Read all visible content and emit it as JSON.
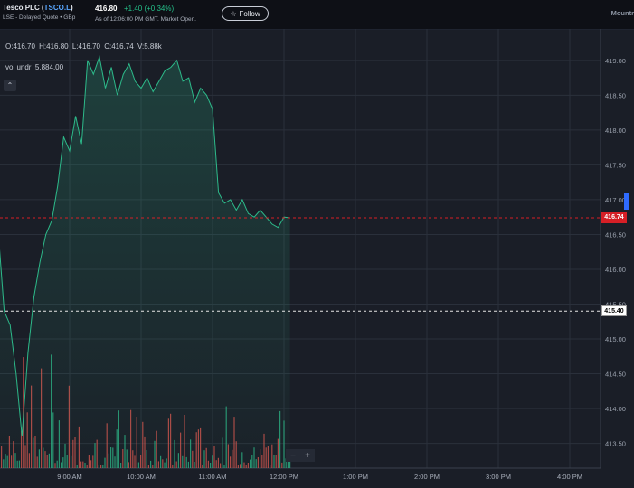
{
  "header": {
    "company": "Tesco PLC (",
    "ticker": "TSCO.L",
    "company_close": ")",
    "exchange_line": "LSE - Delayed Quote • GBp",
    "price": "416.80",
    "change": "+1.40  (+0.34%)",
    "as_of": "As of 12:06:00 PM GMT. Market Open.",
    "follow_icon": "star-icon",
    "follow_label": "Follow",
    "right_label": "Mountr"
  },
  "legend": {
    "open": "O:416.70",
    "high": "H:416.80",
    "low": "L:416.70",
    "close": "C:416.74",
    "volume": "V:5.88k",
    "vol_label": "vol undr",
    "vol_value": "5,884.00",
    "collapse_icon": "chevron-up-icon"
  },
  "price_tags": {
    "current": "416.74",
    "previous_close": "415.40"
  },
  "zoom": {
    "minus": "−",
    "plus": "+"
  },
  "colors": {
    "background": "#1a1e27",
    "line": "#2dba8a",
    "current_price": "#d61f26",
    "volume_up": "#2dba8a",
    "volume_down": "#e0564f",
    "grid": "#2a303b"
  },
  "chart_data": {
    "type": "line",
    "y_ticks": [
      "419.00",
      "418.50",
      "418.00",
      "417.50",
      "417.00",
      "416.50",
      "416.00",
      "415.50",
      "415.00",
      "414.50",
      "414.00",
      "413.50"
    ],
    "x_ticks": [
      "9:00 AM",
      "10:00 AM",
      "11:00 AM",
      "12:00 PM",
      "1:00 PM",
      "2:00 PM",
      "3:00 PM",
      "4:00 PM"
    ],
    "ylim": [
      413.3,
      419.4
    ],
    "reference_lines": {
      "current": 416.74,
      "previous_close": 415.4
    },
    "grid": true,
    "x": [
      "8:00",
      "8:05",
      "8:10",
      "8:15",
      "8:20",
      "8:25",
      "8:30",
      "8:35",
      "8:40",
      "8:45",
      "8:50",
      "8:55",
      "9:00",
      "9:05",
      "9:10",
      "9:15",
      "9:20",
      "9:25",
      "9:30",
      "9:35",
      "9:40",
      "9:45",
      "9:50",
      "9:55",
      "10:00",
      "10:05",
      "10:10",
      "10:15",
      "10:20",
      "10:25",
      "10:30",
      "10:35",
      "10:40",
      "10:45",
      "10:50",
      "10:55",
      "11:00",
      "11:05",
      "11:10",
      "11:15",
      "11:20",
      "11:25",
      "11:30",
      "11:35",
      "11:40",
      "11:45",
      "11:50",
      "11:55",
      "12:00",
      "12:05"
    ],
    "series": [
      {
        "values": [
          416.55,
          415.4,
          415.2,
          414.5,
          413.6,
          414.8,
          415.6,
          416.1,
          416.5,
          416.7,
          417.2,
          417.9,
          417.7,
          418.2,
          417.8,
          419.0,
          418.8,
          419.05,
          418.6,
          418.9,
          418.5,
          418.8,
          418.95,
          418.7,
          418.6,
          418.75,
          418.55,
          418.7,
          418.85,
          418.9,
          419.0,
          418.7,
          418.75,
          418.4,
          418.6,
          418.5,
          418.3,
          417.1,
          416.95,
          417.0,
          416.85,
          417.0,
          416.8,
          416.75,
          416.85,
          416.75,
          416.65,
          416.6,
          416.75,
          416.74
        ]
      }
    ]
  }
}
